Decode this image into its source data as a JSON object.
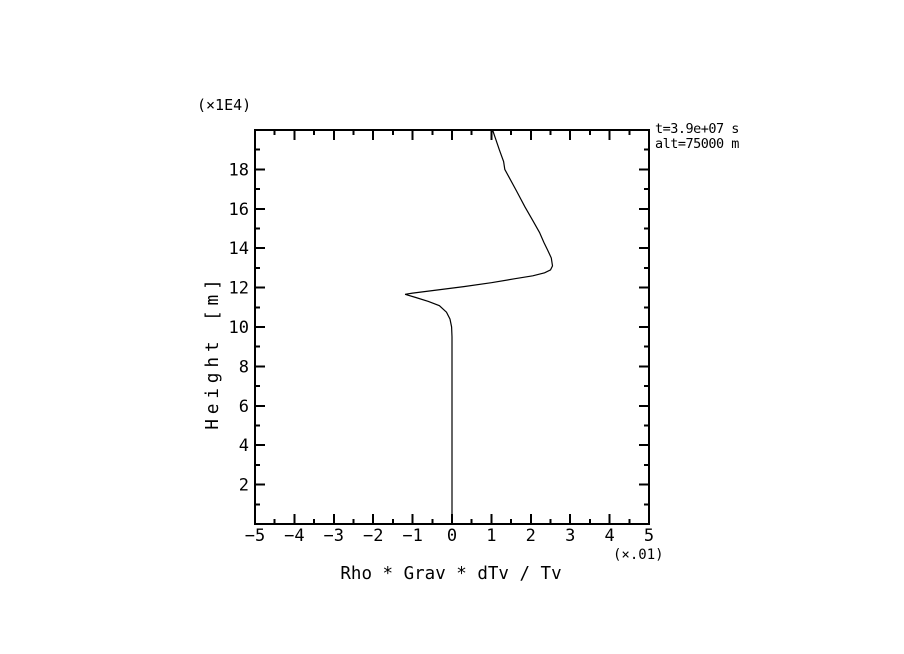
{
  "colors": {
    "foreground": "#000000",
    "background": "#ffffff"
  },
  "chart_data": {
    "type": "line",
    "title": "",
    "xlabel": "Rho * Grav * dTv / Tv",
    "ylabel": "Height [m]",
    "x_scale_note": "(×.01)",
    "y_scale_note": "(×1E4)",
    "annotations": [
      "t=3.9e+07 s",
      "alt=75000 m"
    ],
    "xlim": [
      -5,
      5
    ],
    "ylim": [
      0,
      20
    ],
    "x_major_ticks": [
      -5,
      -4,
      -3,
      -2,
      -1,
      0,
      1,
      2,
      3,
      4,
      5
    ],
    "x_tick_labels": [
      "−5",
      "−4",
      "−3",
      "−2",
      "−1",
      "0",
      "1",
      "2",
      "3",
      "4",
      "5"
    ],
    "x_minor_step": 0.5,
    "y_major_ticks": [
      2,
      4,
      6,
      8,
      10,
      12,
      14,
      16,
      18
    ],
    "y_tick_labels": [
      "2",
      "4",
      "6",
      "8",
      "10",
      "12",
      "14",
      "16",
      "18"
    ],
    "y_minor_step": 1,
    "grid": false,
    "legend": false,
    "series": [
      {
        "name": "rho-grav-dtv-over-tv-profile",
        "points": [
          [
            1.03,
            20.0
          ],
          [
            1.1,
            19.6
          ],
          [
            1.2,
            19.0
          ],
          [
            1.31,
            18.4
          ],
          [
            1.34,
            18.0
          ],
          [
            1.45,
            17.6
          ],
          [
            1.64,
            16.9
          ],
          [
            1.85,
            16.1
          ],
          [
            2.05,
            15.4
          ],
          [
            2.22,
            14.8
          ],
          [
            2.33,
            14.3
          ],
          [
            2.43,
            13.9
          ],
          [
            2.52,
            13.5
          ],
          [
            2.55,
            13.1
          ],
          [
            2.5,
            12.9
          ],
          [
            2.35,
            12.75
          ],
          [
            2.05,
            12.6
          ],
          [
            1.6,
            12.45
          ],
          [
            1.0,
            12.25
          ],
          [
            0.3,
            12.05
          ],
          [
            -0.5,
            11.85
          ],
          [
            -1.0,
            11.72
          ],
          [
            -1.19,
            11.66
          ],
          [
            -0.92,
            11.5
          ],
          [
            -0.6,
            11.3
          ],
          [
            -0.32,
            11.08
          ],
          [
            -0.14,
            10.75
          ],
          [
            -0.05,
            10.4
          ],
          [
            -0.01,
            10.0
          ],
          [
            0.0,
            9.5
          ],
          [
            0.0,
            0.0
          ]
        ]
      }
    ]
  }
}
